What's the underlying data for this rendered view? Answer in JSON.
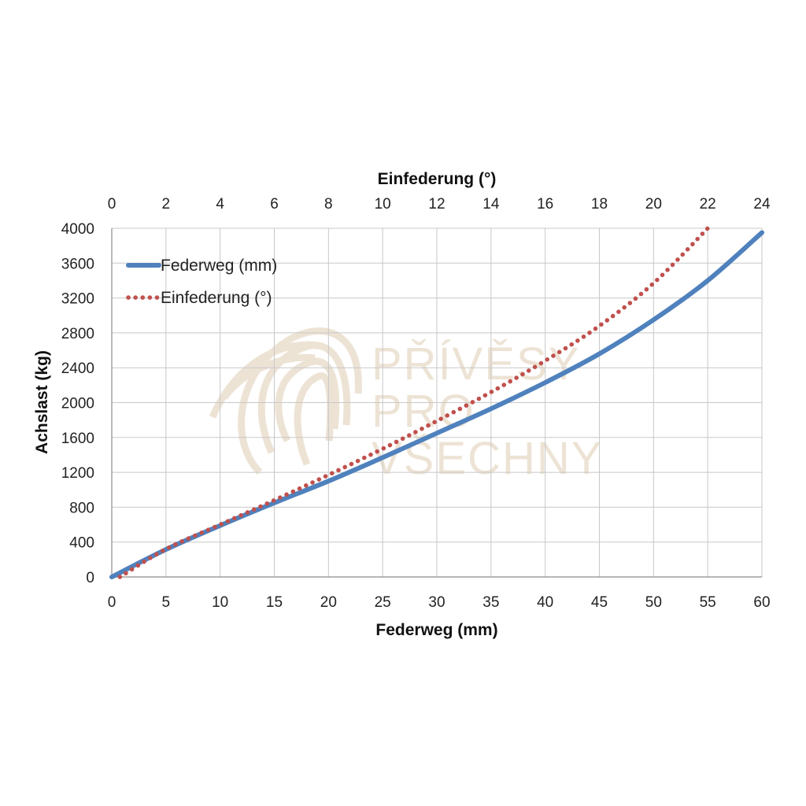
{
  "chart_data": {
    "type": "line",
    "ylabel": "Achslast (kg)",
    "xlabel_bottom": "Federweg (mm)",
    "xlabel_top": "Einfederung (°)",
    "x_bottom": {
      "min": 0,
      "max": 60,
      "step": 5,
      "ticks": [
        0,
        5,
        10,
        15,
        20,
        25,
        30,
        35,
        40,
        45,
        50,
        55,
        60
      ]
    },
    "x_top": {
      "min": 0,
      "max": 24,
      "step": 2,
      "ticks": [
        0,
        2,
        4,
        6,
        8,
        10,
        12,
        14,
        16,
        18,
        20,
        22,
        24
      ]
    },
    "y": {
      "min": 0,
      "max": 4000,
      "step": 400,
      "ticks": [
        0,
        400,
        800,
        1200,
        1600,
        2000,
        2400,
        2800,
        3200,
        3600,
        4000
      ]
    },
    "grid": true,
    "legend_position": "top-left",
    "series": [
      {
        "name": "Federweg (mm)",
        "axis": "bottom",
        "style": "solid",
        "color": "#4f81bd",
        "x": [
          0,
          5,
          10,
          15,
          20,
          25,
          30,
          35,
          40,
          45,
          50,
          55,
          60
        ],
        "y": [
          0,
          315,
          590,
          850,
          1100,
          1370,
          1650,
          1930,
          2230,
          2560,
          2950,
          3400,
          3950
        ]
      },
      {
        "name": "Einfederung (°)",
        "axis": "top",
        "style": "dotted",
        "color": "#c0504d",
        "x": [
          0.3,
          2,
          4,
          6,
          8,
          10,
          12,
          14,
          16,
          18,
          20,
          22
        ],
        "y": [
          0,
          320,
          600,
          880,
          1170,
          1470,
          1790,
          2120,
          2480,
          2880,
          3370,
          4000
        ]
      }
    ],
    "watermark": {
      "lines": [
        "PŘÍVĚSY",
        "PRO",
        "VŠECHNY"
      ],
      "color": "#eadfce"
    }
  }
}
